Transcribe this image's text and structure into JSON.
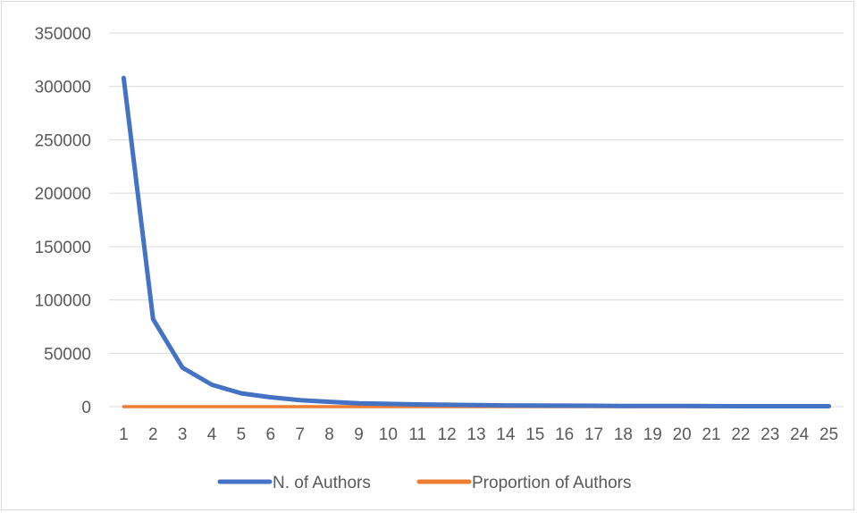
{
  "chart_data": {
    "type": "line",
    "title": "",
    "xlabel": "",
    "ylabel": "",
    "categories": [
      "1",
      "2",
      "3",
      "4",
      "5",
      "6",
      "7",
      "8",
      "9",
      "10",
      "11",
      "12",
      "13",
      "14",
      "15",
      "16",
      "17",
      "18",
      "19",
      "20",
      "21",
      "22",
      "23",
      "24",
      "25"
    ],
    "ylim": [
      0,
      350000
    ],
    "yticks": [
      0,
      50000,
      100000,
      150000,
      200000,
      250000,
      300000,
      350000
    ],
    "grid": true,
    "legend_position": "bottom",
    "series": [
      {
        "name": "N. of Authors",
        "color": "#4472c4",
        "values": [
          308000,
          82000,
          36500,
          20500,
          12500,
          8800,
          6000,
          4500,
          3200,
          2600,
          2100,
          1800,
          1500,
          1200,
          1000,
          900,
          800,
          700,
          600,
          550,
          500,
          450,
          420,
          400,
          380
        ]
      },
      {
        "name": "Proportion of Authors",
        "color": "#ed7d31",
        "values": [
          0.59,
          0.16,
          0.07,
          0.04,
          0.02,
          0.017,
          0.012,
          0.009,
          0.006,
          0.005,
          0.004,
          0.0035,
          0.0029,
          0.0023,
          0.0019,
          0.0017,
          0.0015,
          0.0013,
          0.0012,
          0.0011,
          0.001,
          0.0009,
          0.0008,
          0.0008,
          0.0007
        ]
      }
    ]
  }
}
